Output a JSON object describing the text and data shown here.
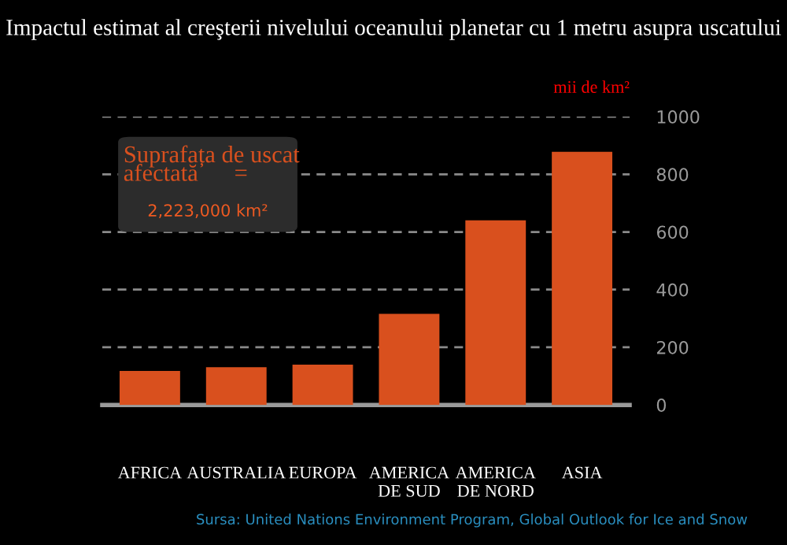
{
  "chart_data": {
    "type": "bar",
    "title": "Impactul estimat al creşterii nivelului oceanului planetar cu 1 metru asupra uscatului",
    "ylabel": "mii de km²",
    "categories": [
      "AFRICA",
      "AUSTRALIA",
      "EUROPA",
      "AMERICA\nDE SUD",
      "AMERICA\nDE NORD",
      "ASIA"
    ],
    "values": [
      118,
      131,
      140,
      316,
      640,
      878
    ],
    "color": "#d9501e",
    "ylim": [
      0,
      1000
    ],
    "yticks": [
      0,
      200,
      400,
      600,
      800,
      1000
    ],
    "grid": "y",
    "annotations": [
      "Suprafața de uscat\nafectată      =",
      "2,223,000 km²",
      "Sursa: United Nations Environment Program, Global Outlook for Ice and Snow"
    ]
  }
}
